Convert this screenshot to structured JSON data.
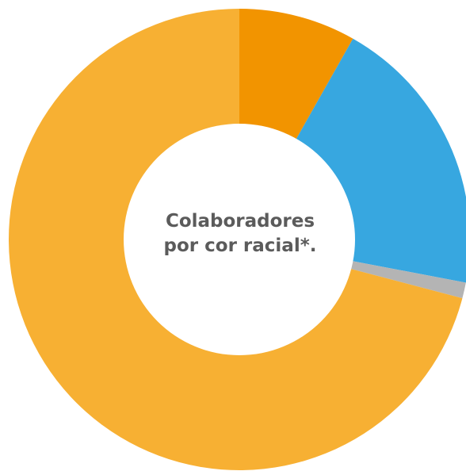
{
  "chart_data": {
    "type": "pie",
    "title": "Colaboradores por cor racial*.",
    "title_lines": [
      "Colaboradores",
      "por cor racial*."
    ],
    "donut": true,
    "slices": [
      {
        "value": 8.2,
        "color": "#f29400"
      },
      {
        "value": 19.8,
        "color": "#37a7e0"
      },
      {
        "value": 1.1,
        "color": "#b4b4b4"
      },
      {
        "value": 70.9,
        "color": "#f7b033"
      }
    ]
  }
}
